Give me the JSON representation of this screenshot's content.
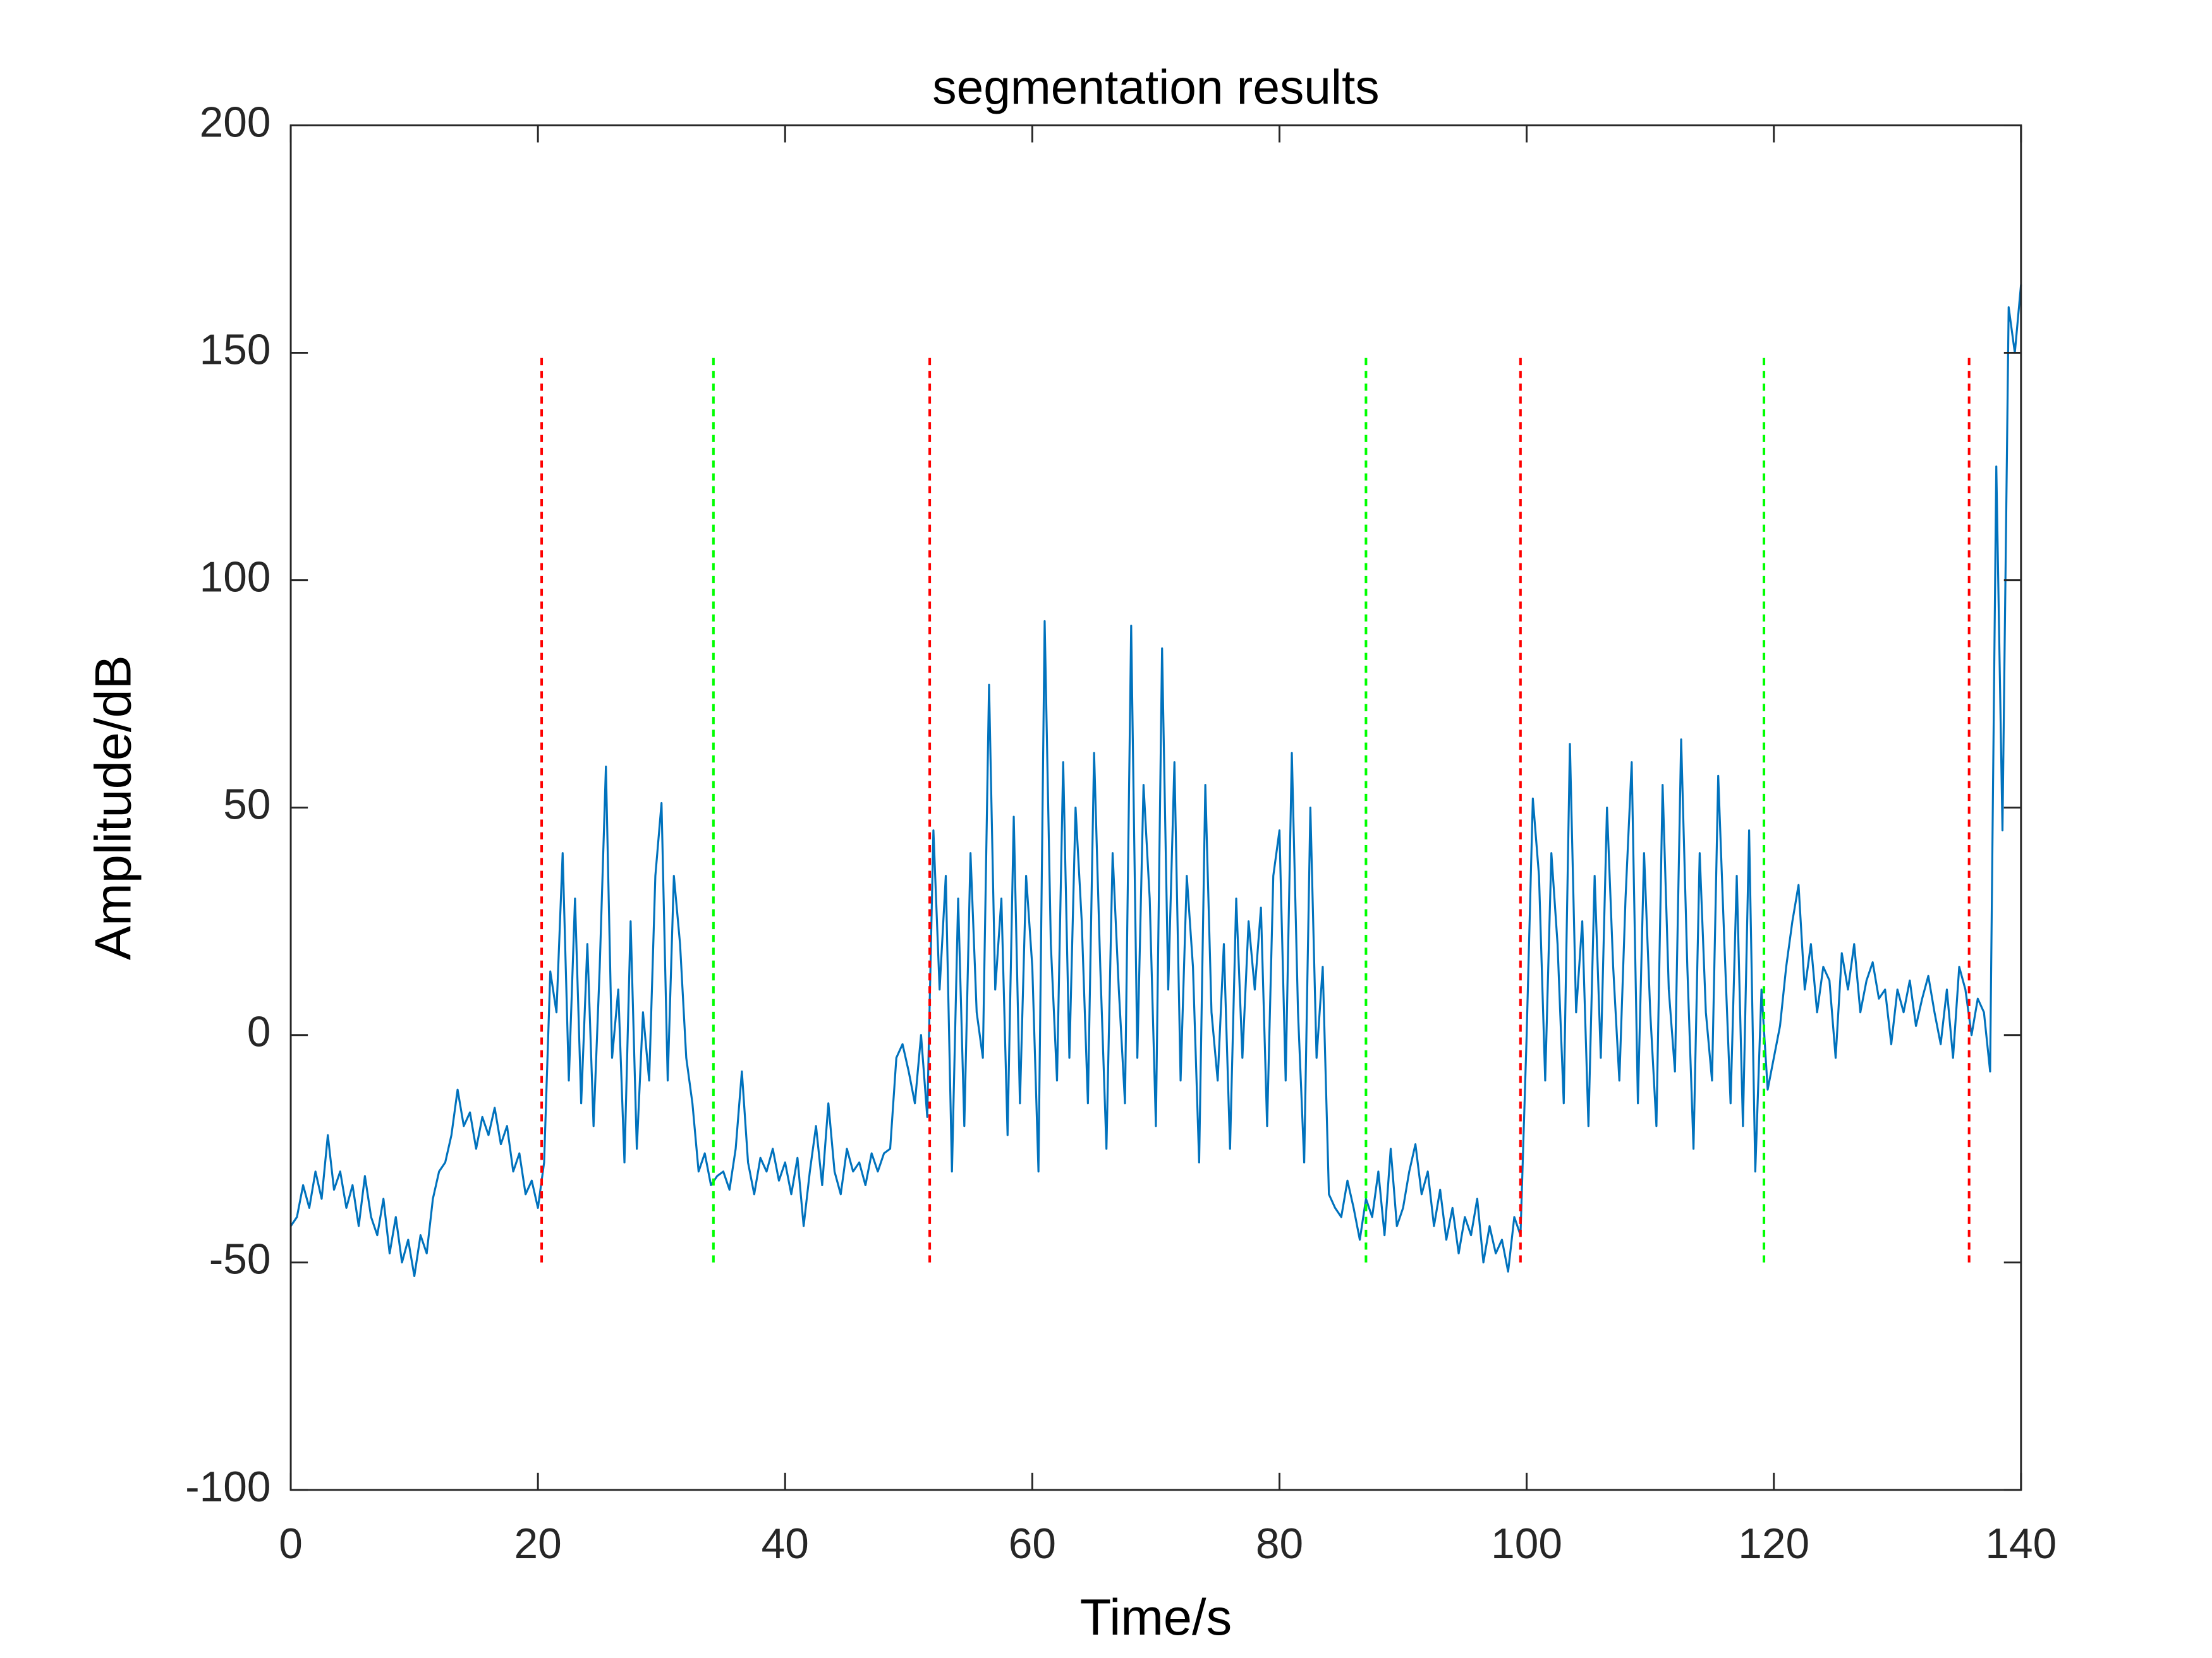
{
  "chart_data": {
    "type": "line",
    "title": "segmentation results",
    "x_label": "Time/s",
    "y_label": "Amplitude/dB",
    "xlim": [
      0,
      140
    ],
    "ylim": [
      -100,
      200
    ],
    "xticks": [
      0,
      20,
      40,
      60,
      80,
      100,
      120,
      140
    ],
    "yticks": [
      -100,
      -50,
      0,
      50,
      100,
      150,
      200
    ],
    "series": [
      {
        "color": "#0072bd",
        "x": [
          0,
          0.5,
          1,
          1.5,
          2,
          2.5,
          3,
          3.5,
          4,
          4.5,
          5,
          5.5,
          6,
          6.5,
          7,
          7.5,
          8,
          8.5,
          9,
          9.5,
          10,
          10.5,
          11,
          11.5,
          12,
          12.5,
          13,
          13.5,
          14,
          14.5,
          15,
          15.5,
          16,
          16.5,
          17,
          17.5,
          18,
          18.5,
          19,
          19.5,
          20,
          20.5,
          21,
          21.5,
          22,
          22.5,
          23,
          23.5,
          24,
          24.5,
          25,
          25.5,
          26,
          26.5,
          27,
          27.5,
          28,
          28.5,
          29,
          29.5,
          30,
          30.5,
          31,
          31.5,
          32,
          32.5,
          33,
          33.5,
          34,
          34.5,
          35,
          35.5,
          36,
          36.5,
          37,
          37.5,
          38,
          38.5,
          39,
          39.5,
          40,
          40.5,
          41,
          41.5,
          42,
          42.5,
          43,
          43.5,
          44,
          44.5,
          45,
          45.5,
          46,
          46.5,
          47,
          47.5,
          48,
          48.5,
          49,
          49.5,
          50,
          50.5,
          51,
          51.5,
          52,
          52.5,
          53,
          53.5,
          54,
          54.5,
          55,
          55.5,
          56,
          56.5,
          57,
          57.5,
          58,
          58.5,
          59,
          59.5,
          60,
          60.5,
          61,
          61.5,
          62,
          62.5,
          63,
          63.5,
          64,
          64.5,
          65,
          65.5,
          66,
          66.5,
          67,
          67.5,
          68,
          68.5,
          69,
          69.5,
          70,
          70.5,
          71,
          71.5,
          72,
          72.5,
          73,
          73.5,
          74,
          74.5,
          75,
          75.5,
          76,
          76.5,
          77,
          77.5,
          78,
          78.5,
          79,
          79.5,
          80,
          80.5,
          81,
          81.5,
          82,
          82.5,
          83,
          83.5,
          84,
          84.5,
          85,
          85.5,
          86,
          86.5,
          87,
          87.5,
          88,
          88.5,
          89,
          89.5,
          90,
          90.5,
          91,
          91.5,
          92,
          92.5,
          93,
          93.5,
          94,
          94.5,
          95,
          95.5,
          96,
          96.5,
          97,
          97.5,
          98,
          98.5,
          99,
          99.5,
          100,
          100.5,
          101,
          101.5,
          102,
          102.5,
          103,
          103.5,
          104,
          104.5,
          105,
          105.5,
          106,
          106.5,
          107,
          107.5,
          108,
          108.5,
          109,
          109.5,
          110,
          110.5,
          111,
          111.5,
          112,
          112.5,
          113,
          113.5,
          114,
          114.5,
          115,
          115.5,
          116,
          116.5,
          117,
          117.5,
          118,
          118.5,
          119,
          119.5,
          120,
          120.5,
          121,
          121.5,
          122,
          122.5,
          123,
          123.5,
          124,
          124.5,
          125,
          125.5,
          126,
          126.5,
          127,
          127.5,
          128,
          128.5,
          129,
          129.5,
          130,
          130.5,
          131,
          131.5,
          132,
          132.5,
          133,
          133.5,
          134,
          134.5,
          135,
          135.5,
          136,
          136.5,
          137,
          137.5,
          138,
          138.5,
          139,
          139.5,
          140
        ],
        "values": [
          -42,
          -40,
          -33,
          -38,
          -30,
          -36,
          -22,
          -34,
          -30,
          -38,
          -33,
          -42,
          -31,
          -40,
          -44,
          -36,
          -48,
          -40,
          -50,
          -45,
          -53,
          -44,
          -48,
          -36,
          -30,
          -28,
          -22,
          -12,
          -20,
          -17,
          -25,
          -18,
          -22,
          -16,
          -24,
          -20,
          -30,
          -26,
          -35,
          -32,
          -38,
          -28,
          14,
          5,
          40,
          -10,
          30,
          -15,
          20,
          -20,
          15,
          59,
          -5,
          10,
          -28,
          25,
          -25,
          5,
          -10,
          35,
          51,
          -10,
          35,
          20,
          -5,
          -15,
          -30,
          -26,
          -33,
          -31,
          -30,
          -34,
          -25,
          -8,
          -28,
          -35,
          -27,
          -30,
          -25,
          -32,
          -28,
          -35,
          -27,
          -42,
          -30,
          -20,
          -33,
          -15,
          -30,
          -35,
          -25,
          -30,
          -28,
          -33,
          -26,
          -30,
          -26,
          -25,
          -5,
          -2,
          -8,
          -15,
          0,
          -18,
          45,
          10,
          35,
          -30,
          30,
          -20,
          40,
          5,
          -5,
          77,
          10,
          30,
          -22,
          48,
          -15,
          35,
          15,
          -30,
          91,
          20,
          -10,
          60,
          -5,
          50,
          25,
          -15,
          62,
          15,
          -25,
          40,
          10,
          -15,
          90,
          -5,
          55,
          30,
          -20,
          85,
          10,
          60,
          -10,
          35,
          15,
          -28,
          55,
          5,
          -10,
          20,
          -25,
          30,
          -5,
          25,
          10,
          28,
          -20,
          35,
          45,
          -10,
          62,
          5,
          -28,
          50,
          -5,
          15,
          -35,
          -38,
          -40,
          -32,
          -38,
          -45,
          -36,
          -40,
          -30,
          -44,
          -25,
          -42,
          -38,
          -30,
          -24,
          -35,
          -30,
          -42,
          -34,
          -45,
          -38,
          -48,
          -40,
          -44,
          -36,
          -50,
          -42,
          -48,
          -45,
          -52,
          -40,
          -44,
          0,
          52,
          35,
          -10,
          40,
          20,
          -15,
          64,
          5,
          25,
          -20,
          35,
          -5,
          50,
          15,
          -10,
          30,
          60,
          -15,
          40,
          5,
          -20,
          55,
          10,
          -8,
          65,
          15,
          -25,
          40,
          5,
          -10,
          57,
          20,
          -15,
          35,
          -20,
          45,
          -30,
          10,
          -12,
          -5,
          2,
          15,
          25,
          33,
          10,
          20,
          5,
          15,
          12,
          -5,
          18,
          10,
          20,
          5,
          12,
          16,
          8,
          10,
          -2,
          10,
          5,
          12,
          2,
          8,
          13,
          5,
          -2,
          10,
          -5,
          15,
          10,
          0,
          8,
          5,
          -8,
          125,
          45,
          160,
          150,
          165
        ]
      },
      {
        "color": "#ff0000",
        "dashed": true,
        "x": [
          20.3,
          20.3
        ],
        "values": [
          -50,
          150
        ]
      },
      {
        "color": "#00ff00",
        "dashed": true,
        "x": [
          34.2,
          34.2
        ],
        "values": [
          -50,
          150
        ]
      },
      {
        "color": "#ff0000",
        "dashed": true,
        "x": [
          51.7,
          51.7
        ],
        "values": [
          -50,
          150
        ]
      },
      {
        "color": "#00ff00",
        "dashed": true,
        "x": [
          87,
          87
        ],
        "values": [
          -50,
          150
        ]
      },
      {
        "color": "#ff0000",
        "dashed": true,
        "x": [
          99.5,
          99.5
        ],
        "values": [
          -50,
          150
        ]
      },
      {
        "color": "#00ff00",
        "dashed": true,
        "x": [
          119.2,
          119.2
        ],
        "values": [
          -50,
          150
        ]
      },
      {
        "color": "#ff0000",
        "dashed": true,
        "x": [
          135.8,
          135.8
        ],
        "values": [
          -50,
          150
        ]
      }
    ]
  }
}
